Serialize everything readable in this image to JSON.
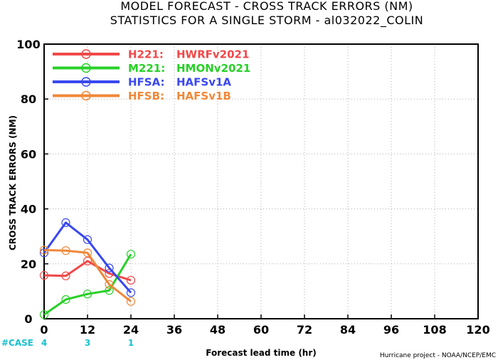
{
  "chart_data": {
    "type": "line",
    "title": "MODEL FORECAST - CROSS TRACK ERRORS (NM)",
    "subtitle": "STATISTICS FOR A SINGLE STORM - al032022_COLIN",
    "xlabel": "Forecast lead time (hr)",
    "ylabel": "CROSS TRACK ERRORS (NM)",
    "xlim": [
      0,
      120
    ],
    "ylim": [
      0,
      100
    ],
    "xticks": [
      "0",
      "12",
      "24",
      "36",
      "48",
      "60",
      "72",
      "84",
      "96",
      "108",
      "120"
    ],
    "yticks": [
      "0",
      "20",
      "40",
      "60",
      "80",
      "100"
    ],
    "grid": true,
    "legend_position": "top-left",
    "case_label": "#CASE",
    "case_counts": [
      {
        "x": 0,
        "label": "4"
      },
      {
        "x": 12,
        "label": "3"
      },
      {
        "x": 24,
        "label": "1"
      }
    ],
    "credit": "Hurricane project - NOAA/NCEP/EMC",
    "series": [
      {
        "name": "H221: HWRFv2021",
        "code": "H221:",
        "model": "HWRFv2021",
        "color": "#f04848",
        "x": [
          0,
          6,
          12,
          18,
          24
        ],
        "values": [
          15.8,
          15.6,
          21.0,
          16.5,
          14.0
        ]
      },
      {
        "name": "M221: HMONv2021",
        "code": "M221:",
        "model": "HMONv2021",
        "color": "#28d028",
        "x": [
          0,
          6,
          12,
          18,
          24
        ],
        "values": [
          1.5,
          7.0,
          9.0,
          10.3,
          23.5
        ]
      },
      {
        "name": "HFSA: HAFSv1A",
        "code": "HFSA:",
        "model": "HAFSv1A",
        "color": "#3848f0",
        "x": [
          0,
          6,
          12,
          18,
          24
        ],
        "values": [
          24.0,
          35.0,
          28.8,
          18.5,
          9.5
        ]
      },
      {
        "name": "HFSB: HAFSv1B",
        "code": "HFSB:",
        "model": "HAFSv1B",
        "color": "#f08838",
        "x": [
          0,
          6,
          12,
          18,
          24
        ],
        "values": [
          25.0,
          24.8,
          24.0,
          12.5,
          6.3
        ]
      }
    ]
  }
}
